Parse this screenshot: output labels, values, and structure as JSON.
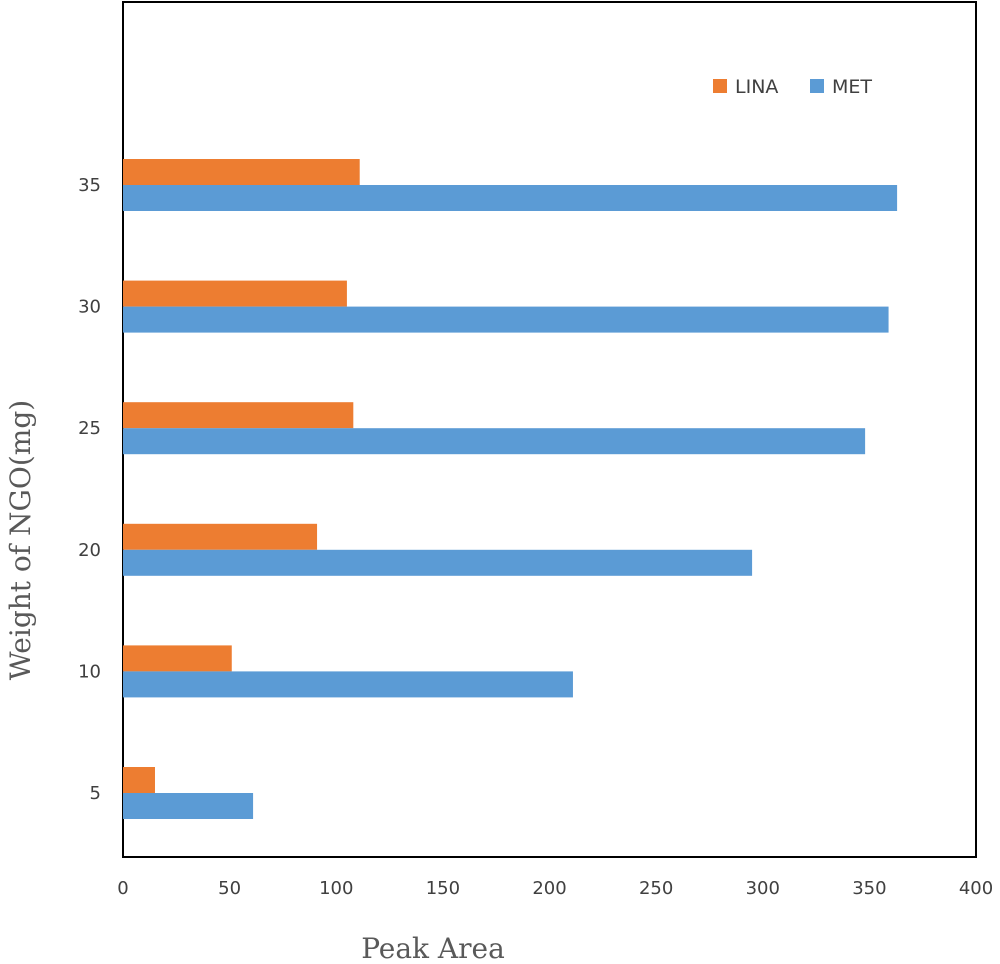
{
  "chart_data": {
    "type": "bar",
    "orientation": "horizontal",
    "categories": [
      "5",
      "10",
      "20",
      "25",
      "30",
      "35"
    ],
    "series": [
      {
        "name": "LINA",
        "values": [
          15,
          51,
          91,
          108,
          105,
          111
        ]
      },
      {
        "name": "MET",
        "values": [
          61,
          211,
          295,
          348,
          359,
          363
        ]
      }
    ],
    "xlabel": "Peak Area",
    "ylabel": "Weight of NGO(mg)",
    "xlim": [
      0,
      400
    ],
    "xticks": [
      "0",
      "50",
      "100",
      "150",
      "200",
      "250",
      "300",
      "350",
      "400"
    ],
    "grid": false,
    "legend_position": "top-right",
    "colors": {
      "LINA": "#ED7D31",
      "MET": "#5B9BD5"
    }
  }
}
